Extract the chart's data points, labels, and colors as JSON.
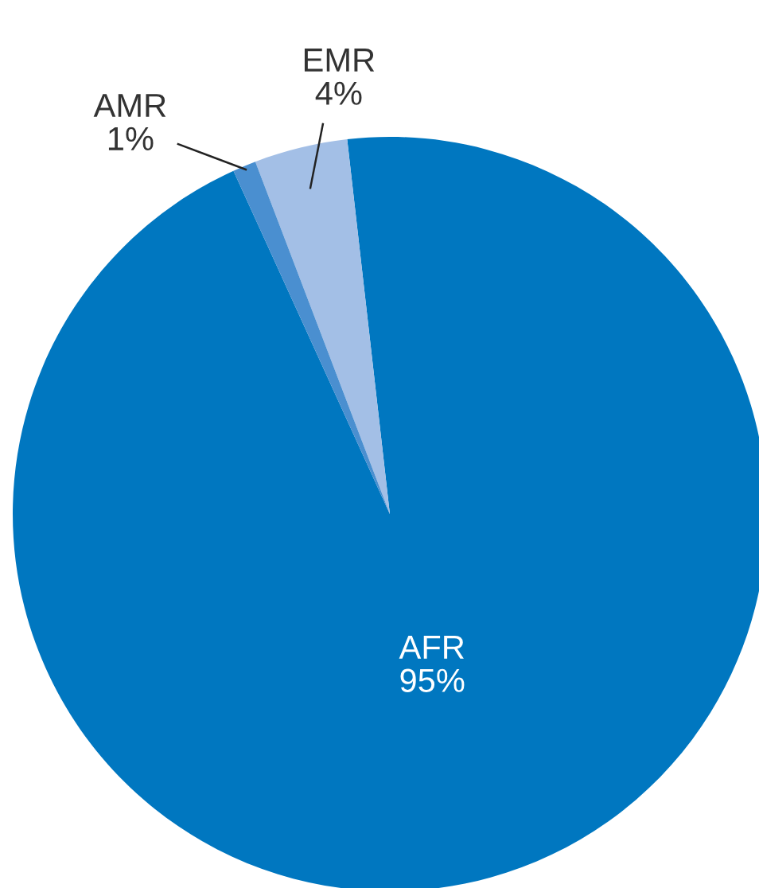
{
  "chart_data": {
    "type": "pie",
    "categories": [
      "AFR",
      "EMR",
      "AMR"
    ],
    "values": [
      95,
      4,
      1
    ],
    "colors": [
      "#0077c0",
      "#a3bfe6",
      "#4a8fd0"
    ],
    "value_labels": [
      "95%",
      "4%",
      "1%"
    ]
  }
}
